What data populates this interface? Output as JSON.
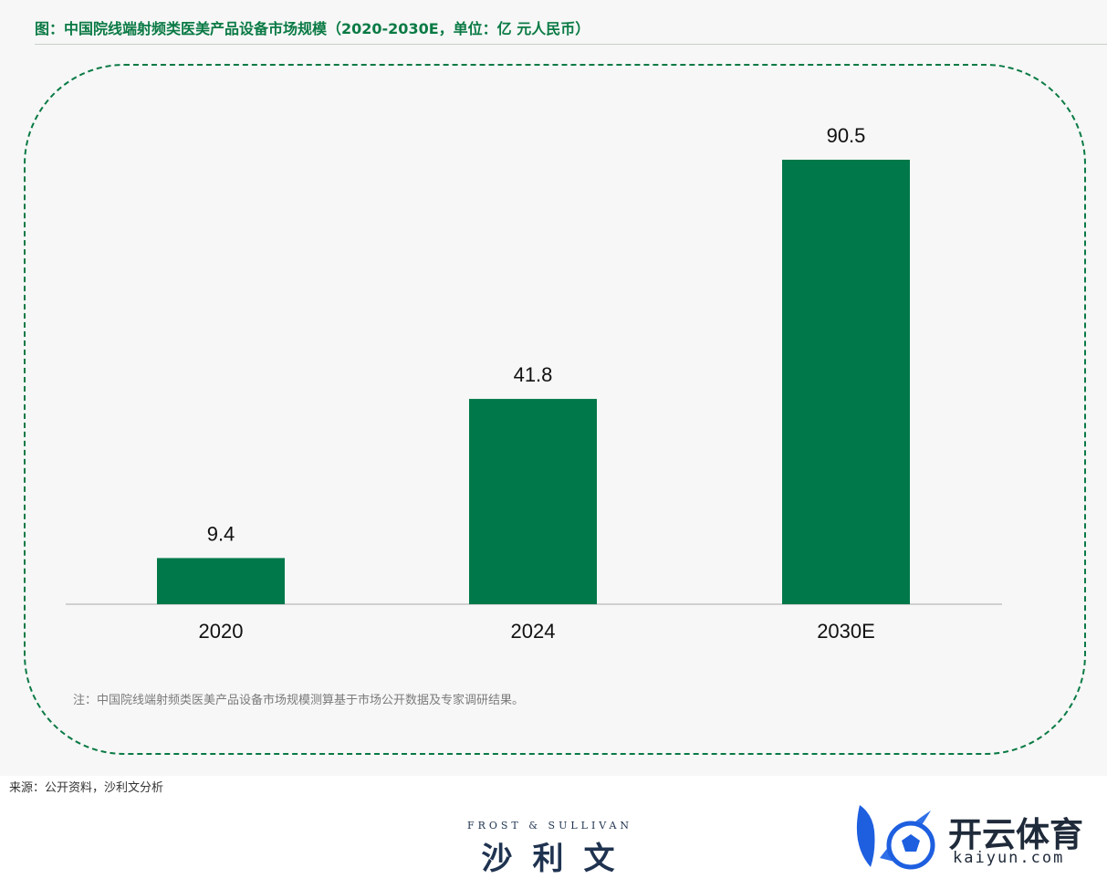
{
  "header": {
    "title": "图：中国院线端射频类医美产品设备市场规模（2020-2030E，单位：亿 元人民币）"
  },
  "chart_data": {
    "type": "bar",
    "categories": [
      "2020",
      "2024",
      "2030E"
    ],
    "values": [
      9.4,
      41.8,
      90.5
    ],
    "data_labels": [
      "9.4",
      "41.8",
      "90.5"
    ],
    "ylim": [
      0,
      90.5
    ],
    "grid": false,
    "legend": "none",
    "bar_color": "#00784a",
    "axis_color": "#d0d0d0"
  },
  "note": "注：中国院线端射频类医美产品设备市场规模测算基于市场公开数据及专家调研结果。",
  "source": "来源：公开资料，沙利文分析",
  "logos": {
    "frost_sullivan_en": "FROST & SULLIVAN",
    "frost_sullivan_cn": "沙利文",
    "kaiyun_cn": "开云体育",
    "kaiyun_en": "kaiyun.com"
  },
  "colors": {
    "title": "#0a7a45",
    "frame": "#0a7a45",
    "panel_bg": "#f6f7f6",
    "kaiyun_blue": "#1e5fe0"
  }
}
